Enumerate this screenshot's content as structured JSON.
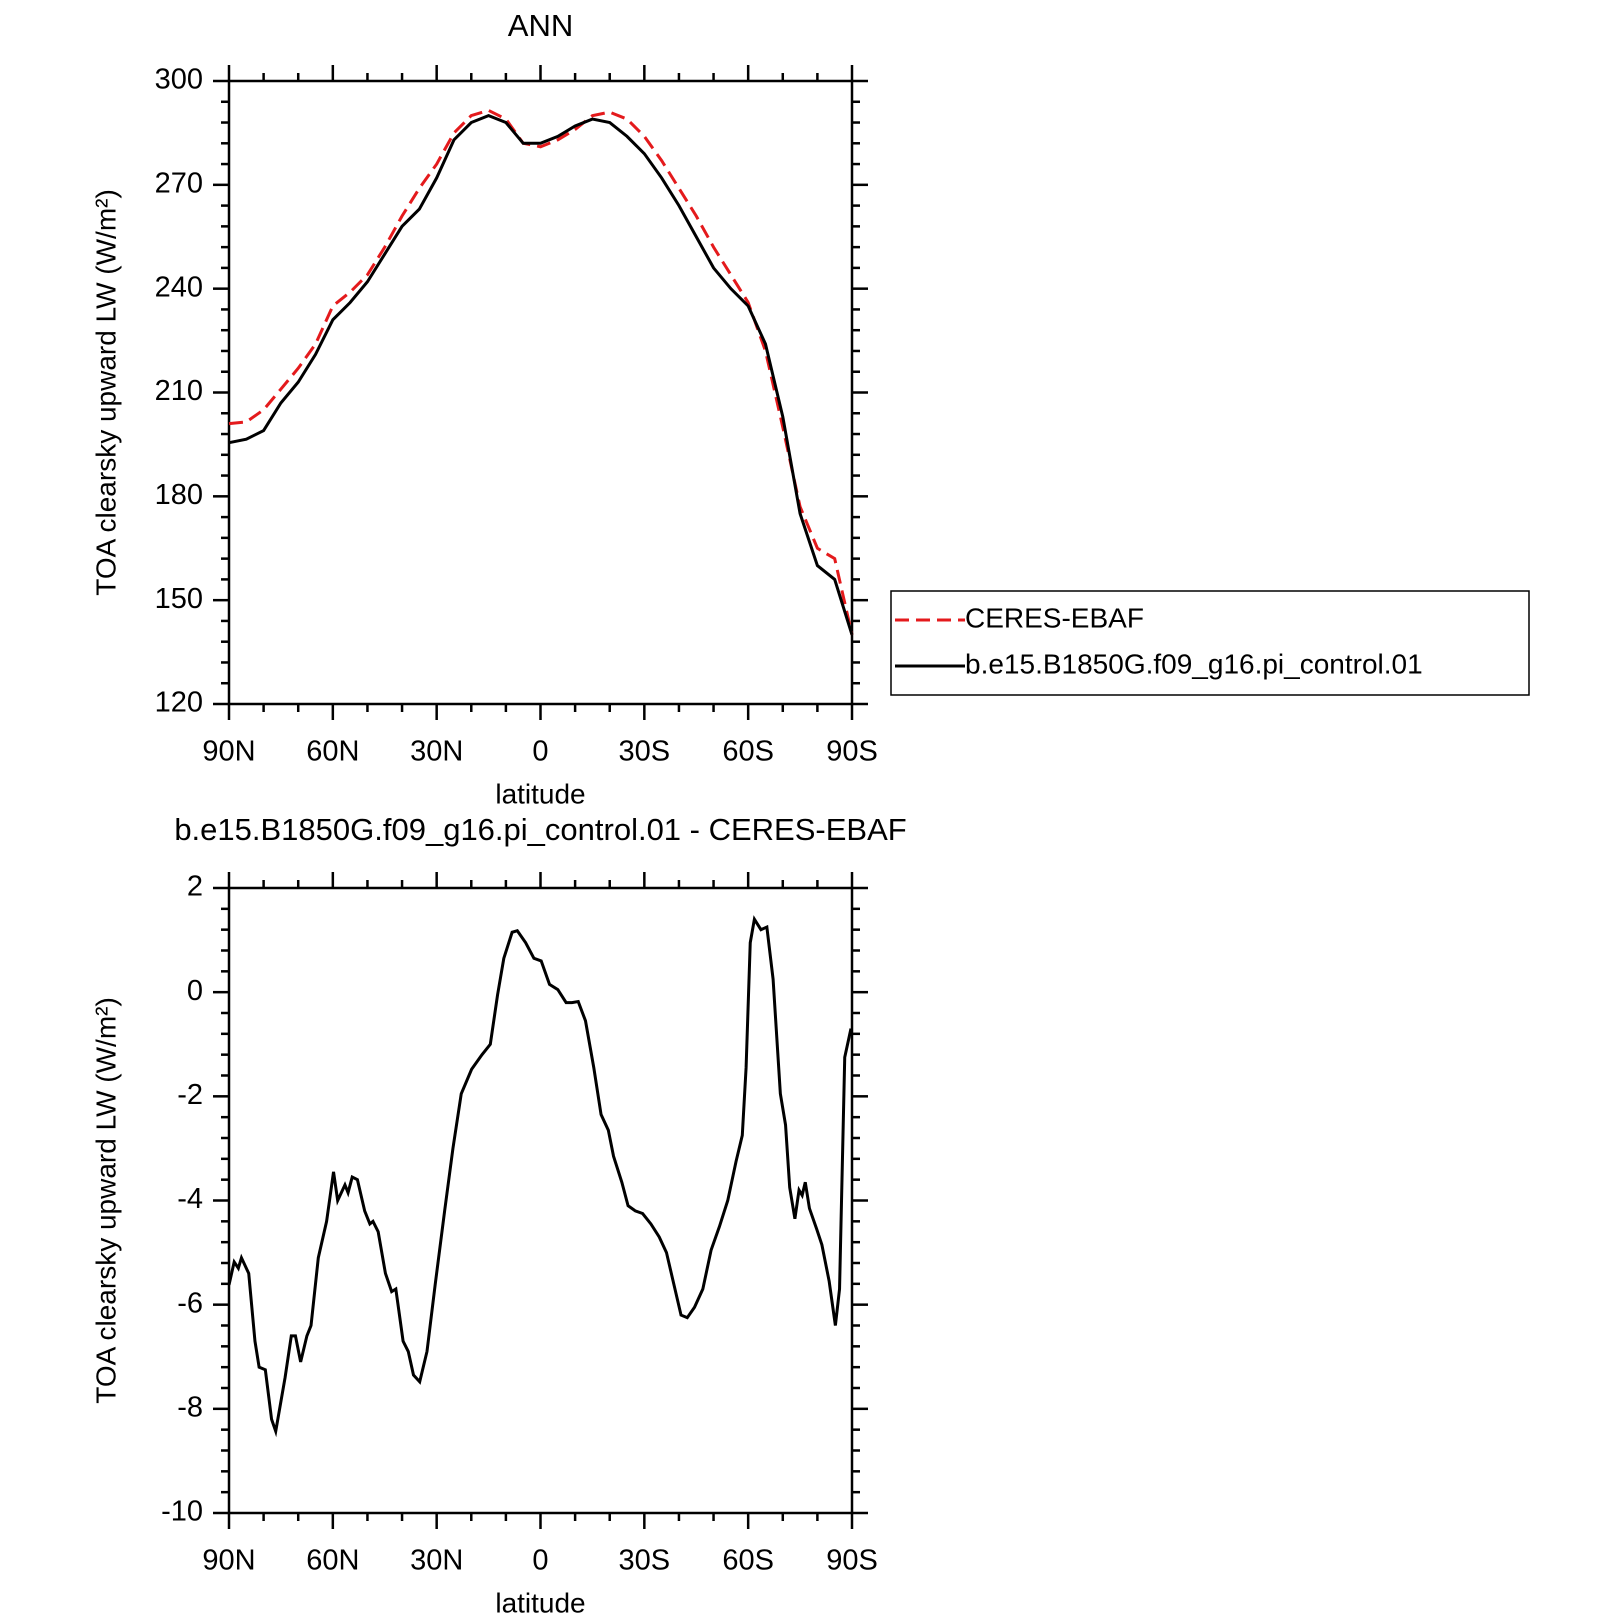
{
  "chart_data": [
    {
      "type": "line",
      "title": "ANN",
      "x_label": "latitude",
      "y_label": "TOA clearsky upward LW (W/m²)",
      "x": [
        90,
        85,
        80,
        75,
        70,
        65,
        60,
        55,
        50,
        45,
        40,
        35,
        30,
        25,
        20,
        15,
        10,
        5,
        0,
        -5,
        -10,
        -15,
        -20,
        -25,
        -30,
        -35,
        -40,
        -45,
        -50,
        -55,
        -60,
        -65,
        -70,
        -75,
        -80,
        -85,
        -90
      ],
      "series": [
        {
          "name": "CERES-EBAF",
          "color": "#e41a1c",
          "style": "dashed",
          "values": [
            201,
            201.5,
            205,
            211,
            217,
            224,
            235,
            239,
            244,
            252,
            261,
            269,
            276,
            285,
            290,
            291.5,
            289,
            282,
            281,
            283,
            286,
            290,
            291,
            289,
            284,
            277,
            269,
            261,
            252,
            244,
            236,
            222,
            200,
            177,
            165,
            162,
            140
          ]
        },
        {
          "name": "b.e15.B1850G.f09_g16.pi_control.01",
          "color": "#000000",
          "style": "solid",
          "values": [
            195.5,
            196.5,
            199,
            207,
            213,
            221,
            231,
            236,
            242,
            250,
            258,
            263,
            272,
            283,
            288,
            290,
            288,
            282,
            282,
            284,
            287,
            289,
            288,
            284,
            279,
            272,
            264,
            255,
            246,
            240,
            235,
            224,
            203,
            175,
            160,
            156,
            140
          ]
        }
      ],
      "xlim": [
        90,
        -90
      ],
      "xticks": [
        {
          "value": 90,
          "label": "90N"
        },
        {
          "value": 60,
          "label": "60N"
        },
        {
          "value": 30,
          "label": "30N"
        },
        0,
        {
          "value": -30,
          "label": "30S"
        },
        {
          "value": -60,
          "label": "60S"
        },
        {
          "value": -90,
          "label": "90S"
        }
      ],
      "ylim": [
        120,
        300
      ],
      "yticks": [
        120,
        150,
        180,
        210,
        240,
        270,
        300
      ],
      "legend": "right"
    },
    {
      "type": "line",
      "title": "b.e15.B1850G.f09_g16.pi_control.01 - CERES-EBAF",
      "x_label": "latitude",
      "y_label": "TOA clearsky upward LW (W/m²)",
      "x": [
        90,
        88.5,
        87.3,
        86.4,
        84.3,
        82.5,
        81.3,
        79.5,
        77.7,
        76.5,
        73.8,
        72,
        70.8,
        69.3,
        67.5,
        66.3,
        64.2,
        61.8,
        59.8,
        58.6,
        56.5,
        55.6,
        54.4,
        52.9,
        50.8,
        49.3,
        48.4,
        46.9,
        44.8,
        43,
        41.8,
        39.7,
        38.2,
        36.7,
        34.9,
        32.8,
        30.4,
        27.7,
        25.3,
        22.9,
        19.9,
        16.9,
        14.5,
        12.4,
        10.6,
        8.2,
        6.7,
        4.3,
        1.9,
        -0.2,
        -2.6,
        -5,
        -7.4,
        -9.1,
        -10.9,
        -13,
        -15.4,
        -17.5,
        -19.6,
        -21.1,
        -23.5,
        -25.3,
        -27.4,
        -29.5,
        -31.9,
        -34.3,
        -36.4,
        -38.5,
        -40.6,
        -42.4,
        -44.5,
        -46.9,
        -49.3,
        -51.7,
        -54.1,
        -56.5,
        -58.3,
        -59.4,
        -60.6,
        -61.8,
        -63.7,
        -65.4,
        -67.2,
        -69.3,
        -70.8,
        -72,
        -73.5,
        -74.7,
        -75.6,
        -76.5,
        -77.7,
        -79.8,
        -81.3,
        -83.4,
        -85.2,
        -86.4,
        -87.9,
        -89.7
      ],
      "values": [
        -5.62,
        -5.18,
        -5.3,
        -5.1,
        -5.4,
        -6.7,
        -7.2,
        -7.25,
        -8.2,
        -8.43,
        -7.4,
        -6.6,
        -6.6,
        -7.1,
        -6.6,
        -6.4,
        -5.1,
        -4.4,
        -3.45,
        -4,
        -3.7,
        -3.85,
        -3.55,
        -3.6,
        -4.2,
        -4.45,
        -4.4,
        -4.6,
        -5.4,
        -5.75,
        -5.7,
        -6.7,
        -6.9,
        -7.35,
        -7.48,
        -6.9,
        -5.6,
        -4.2,
        -3,
        -1.95,
        -1.48,
        -1.2,
        -1,
        -0.05,
        0.65,
        1.15,
        1.18,
        0.95,
        0.65,
        0.6,
        0.15,
        0.05,
        -0.2,
        -0.2,
        -0.18,
        -0.55,
        -1.45,
        -2.35,
        -2.65,
        -3.15,
        -3.65,
        -4.1,
        -4.2,
        -4.25,
        -4.45,
        -4.7,
        -5,
        -5.6,
        -6.2,
        -6.25,
        -6.05,
        -5.7,
        -4.95,
        -4.5,
        -4,
        -3.25,
        -2.75,
        -1.45,
        0.95,
        1.4,
        1.2,
        1.25,
        0.25,
        -1.95,
        -2.55,
        -3.75,
        -4.35,
        -3.8,
        -3.9,
        -3.65,
        -4.15,
        -4.55,
        -4.85,
        -5.55,
        -6.4,
        -5.7,
        -1.25,
        -0.7
      ],
      "color": "#000000",
      "xlim": [
        90,
        -90
      ],
      "xticks": [
        {
          "value": 90,
          "label": "90N"
        },
        {
          "value": 60,
          "label": "60N"
        },
        {
          "value": 30,
          "label": "30N"
        },
        0,
        {
          "value": -30,
          "label": "30S"
        },
        {
          "value": -60,
          "label": "60S"
        },
        {
          "value": -90,
          "label": "90S"
        }
      ],
      "ylim": [
        -10,
        2
      ],
      "yticks": [
        -10,
        -8,
        -6,
        -4,
        -2,
        0,
        2
      ]
    }
  ]
}
